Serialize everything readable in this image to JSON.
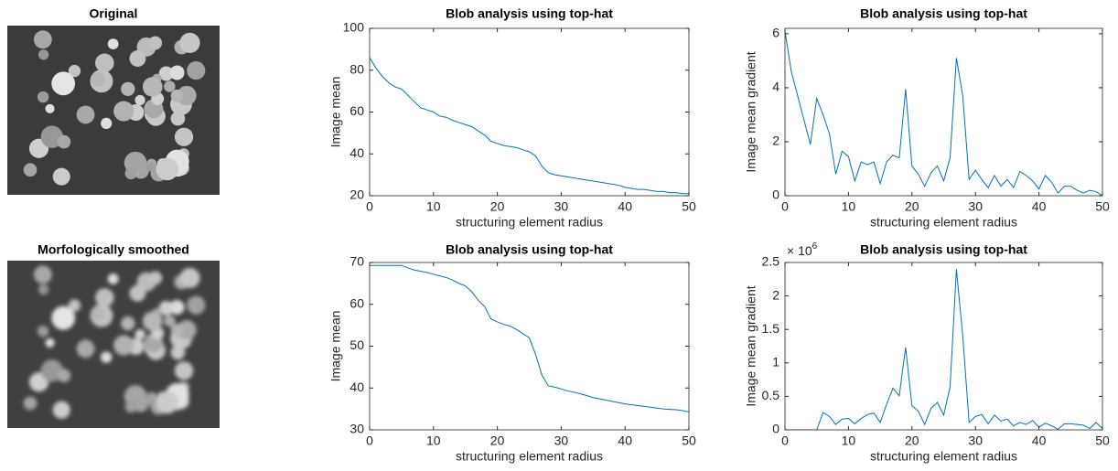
{
  "chart_data": [
    {
      "type": "image",
      "title": "Original"
    },
    {
      "type": "line",
      "title": "Blob analysis using top-hat",
      "xlabel": "structuring element radius",
      "ylabel": "Image mean",
      "color": "#0072bd",
      "x": [
        0,
        1,
        2,
        3,
        4,
        5,
        6,
        7,
        8,
        9,
        10,
        11,
        12,
        13,
        14,
        15,
        16,
        17,
        18,
        19,
        20,
        21,
        22,
        23,
        24,
        25,
        26,
        27,
        28,
        29,
        30,
        31,
        32,
        33,
        34,
        35,
        36,
        37,
        38,
        39,
        40,
        41,
        42,
        43,
        44,
        45,
        46,
        47,
        48,
        49,
        50
      ],
      "values": [
        86,
        81,
        77,
        74,
        72,
        71,
        68,
        65,
        62,
        61,
        60,
        58,
        57.5,
        56,
        55,
        54,
        53,
        51,
        49,
        46,
        45,
        44,
        43.5,
        43,
        42,
        41,
        39,
        34,
        31,
        30,
        29.5,
        29,
        28.5,
        28,
        27.5,
        27,
        26.5,
        26,
        25.5,
        25,
        24,
        23.5,
        23,
        23,
        22.5,
        22,
        22,
        21.5,
        21.5,
        21,
        21
      ],
      "xlim": [
        0,
        50
      ],
      "xticks": [
        0,
        10,
        20,
        30,
        40,
        50
      ],
      "ylim": [
        20,
        100
      ],
      "yticks": [
        20,
        40,
        60,
        80,
        100
      ]
    },
    {
      "type": "line",
      "title": "Blob analysis using top-hat",
      "xlabel": "structuring element radius",
      "ylabel": "Image mean gradient",
      "color": "#0072bd",
      "x": [
        0,
        1,
        2,
        3,
        4,
        5,
        6,
        7,
        8,
        9,
        10,
        11,
        12,
        13,
        14,
        15,
        16,
        17,
        18,
        19,
        20,
        21,
        22,
        23,
        24,
        25,
        26,
        27,
        28,
        29,
        30,
        31,
        32,
        33,
        34,
        35,
        36,
        37,
        38,
        39,
        40,
        41,
        42,
        43,
        44,
        45,
        46,
        47,
        48,
        49,
        50
      ],
      "values": [
        6.1,
        4.6,
        3.7,
        2.8,
        1.9,
        3.6,
        3.0,
        2.3,
        0.8,
        1.65,
        1.45,
        0.55,
        1.25,
        1.15,
        1.25,
        0.45,
        1.25,
        1.5,
        1.4,
        3.95,
        1.1,
        0.8,
        0.35,
        0.85,
        1.1,
        0.55,
        1.4,
        5.1,
        3.7,
        0.6,
        0.95,
        0.6,
        0.3,
        0.75,
        0.35,
        0.6,
        0.3,
        0.9,
        0.75,
        0.55,
        0.25,
        0.75,
        0.5,
        0.1,
        0.35,
        0.35,
        0.2,
        0.1,
        0.2,
        0.15,
        0
      ],
      "xlim": [
        0,
        50
      ],
      "xticks": [
        0,
        10,
        20,
        30,
        40,
        50
      ],
      "ylim": [
        0,
        6.2
      ],
      "yticks": [
        0,
        2,
        4,
        6
      ]
    },
    {
      "type": "image",
      "title": "Morfologically smoothed"
    },
    {
      "type": "line",
      "title": "Blob analysis using top-hat",
      "xlabel": "structuring element radius",
      "ylabel": "Image mean",
      "color": "#0072bd",
      "x": [
        0,
        1,
        2,
        3,
        4,
        5,
        6,
        7,
        8,
        9,
        10,
        11,
        12,
        13,
        14,
        15,
        16,
        17,
        18,
        19,
        20,
        21,
        22,
        23,
        24,
        25,
        26,
        27,
        28,
        29,
        30,
        31,
        32,
        33,
        34,
        35,
        36,
        37,
        38,
        39,
        40,
        41,
        42,
        43,
        44,
        45,
        46,
        47,
        48,
        49,
        50
      ],
      "values": [
        69.3,
        69.3,
        69.3,
        69.3,
        69.3,
        69.3,
        68.7,
        68.2,
        67.9,
        67.6,
        67.2,
        66.8,
        66.4,
        65.8,
        65,
        64.4,
        63,
        61,
        59.5,
        56.5,
        55.8,
        55.2,
        54.8,
        54,
        53,
        52,
        48,
        43,
        40.5,
        40.2,
        39.8,
        39.3,
        39,
        38.6,
        38.2,
        37.7,
        37.4,
        37.1,
        36.8,
        36.5,
        36.2,
        36,
        35.8,
        35.6,
        35.4,
        35.2,
        35,
        34.9,
        34.8,
        34.6,
        34.3
      ],
      "xlim": [
        0,
        50
      ],
      "xticks": [
        0,
        10,
        20,
        30,
        40,
        50
      ],
      "ylim": [
        30,
        70
      ],
      "yticks": [
        30,
        40,
        50,
        60,
        70
      ]
    },
    {
      "type": "line",
      "title": "Blob analysis using top-hat",
      "xlabel": "structuring element radius",
      "ylabel": "Image mean gradient",
      "color": "#0072bd",
      "y_scale_base": "× 10",
      "y_scale_exponent": "6",
      "x": [
        0,
        1,
        2,
        3,
        4,
        5,
        6,
        7,
        8,
        9,
        10,
        11,
        12,
        13,
        14,
        15,
        16,
        17,
        18,
        19,
        20,
        21,
        22,
        23,
        24,
        25,
        26,
        27,
        28,
        29,
        30,
        31,
        32,
        33,
        34,
        35,
        36,
        37,
        38,
        39,
        40,
        41,
        42,
        43,
        44,
        45,
        46,
        47,
        48,
        49,
        50
      ],
      "values": [
        0,
        0,
        0,
        0,
        0,
        0,
        260000,
        200000,
        80000,
        160000,
        170000,
        90000,
        170000,
        230000,
        250000,
        110000,
        380000,
        620000,
        510000,
        1230000,
        360000,
        280000,
        80000,
        320000,
        410000,
        220000,
        640000,
        2400000,
        1400000,
        110000,
        200000,
        230000,
        90000,
        220000,
        130000,
        160000,
        60000,
        110000,
        80000,
        140000,
        40000,
        100000,
        60000,
        10000,
        90000,
        90000,
        80000,
        70000,
        20000,
        110000,
        20000
      ],
      "xlim": [
        0,
        50
      ],
      "xticks": [
        0,
        10,
        20,
        30,
        40,
        50
      ],
      "ylim": [
        0,
        2500000
      ],
      "yticks": [
        0,
        {
          "value": 500000,
          "label": "0.5"
        },
        {
          "value": 1000000,
          "label": "1"
        },
        {
          "value": 1500000,
          "label": "1.5"
        },
        {
          "value": 2000000,
          "label": "2"
        },
        {
          "value": 2500000,
          "label": "2.5"
        }
      ]
    }
  ]
}
